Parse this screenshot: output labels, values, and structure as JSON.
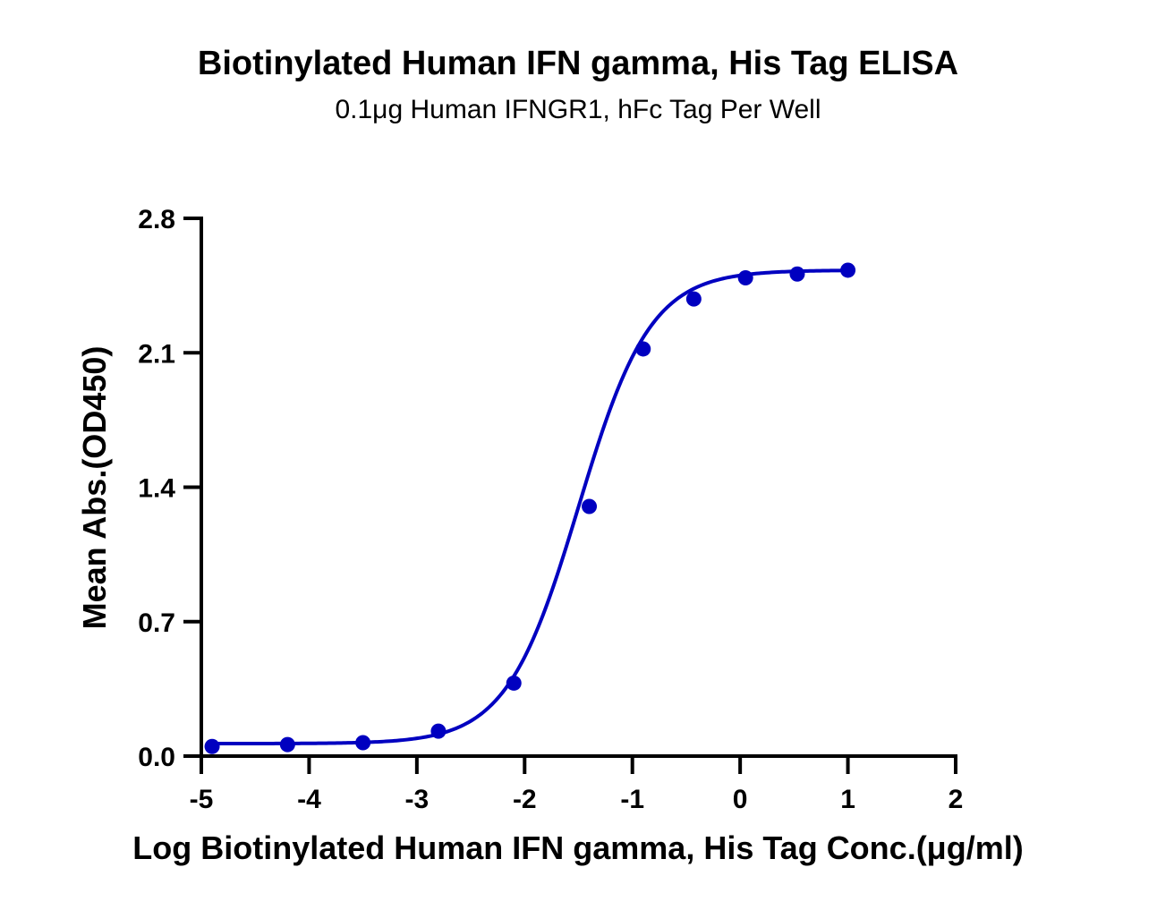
{
  "chart_data": {
    "type": "scatter",
    "title": "Biotinylated Human IFN gamma, His Tag ELISA",
    "subtitle": "0.1μg Human IFNGR1, hFc Tag Per Well",
    "xlabel": "Log Biotinylated Human IFN gamma, His Tag Conc.(μg/ml)",
    "ylabel": "Mean Abs.(OD450)",
    "xlim": [
      -5,
      2
    ],
    "ylim": [
      0.0,
      2.8
    ],
    "xticks": [
      -5,
      -4,
      -3,
      -2,
      -1,
      0,
      1,
      2
    ],
    "xtick_labels": [
      "-5",
      "-4",
      "-3",
      "-2",
      "-1",
      "0",
      "1",
      "2"
    ],
    "yticks": [
      0.0,
      0.7,
      1.4,
      2.1,
      2.8
    ],
    "ytick_labels": [
      "0.0",
      "0.7",
      "1.4",
      "2.1",
      "2.8"
    ],
    "grid": false,
    "series": [
      {
        "color": "#0000C0",
        "x": [
          -4.9,
          -4.2,
          -3.5,
          -2.8,
          -2.1,
          -1.4,
          -0.9,
          -0.43,
          0.05,
          0.53,
          1.0
        ],
        "y": [
          0.05,
          0.06,
          0.07,
          0.13,
          0.38,
          1.3,
          2.12,
          2.38,
          2.49,
          2.51,
          2.53
        ]
      }
    ],
    "fit_curve": {
      "model": "4PL",
      "bottom": 0.065,
      "top": 2.53,
      "logEC50": -1.5,
      "hill": 1.3
    }
  }
}
